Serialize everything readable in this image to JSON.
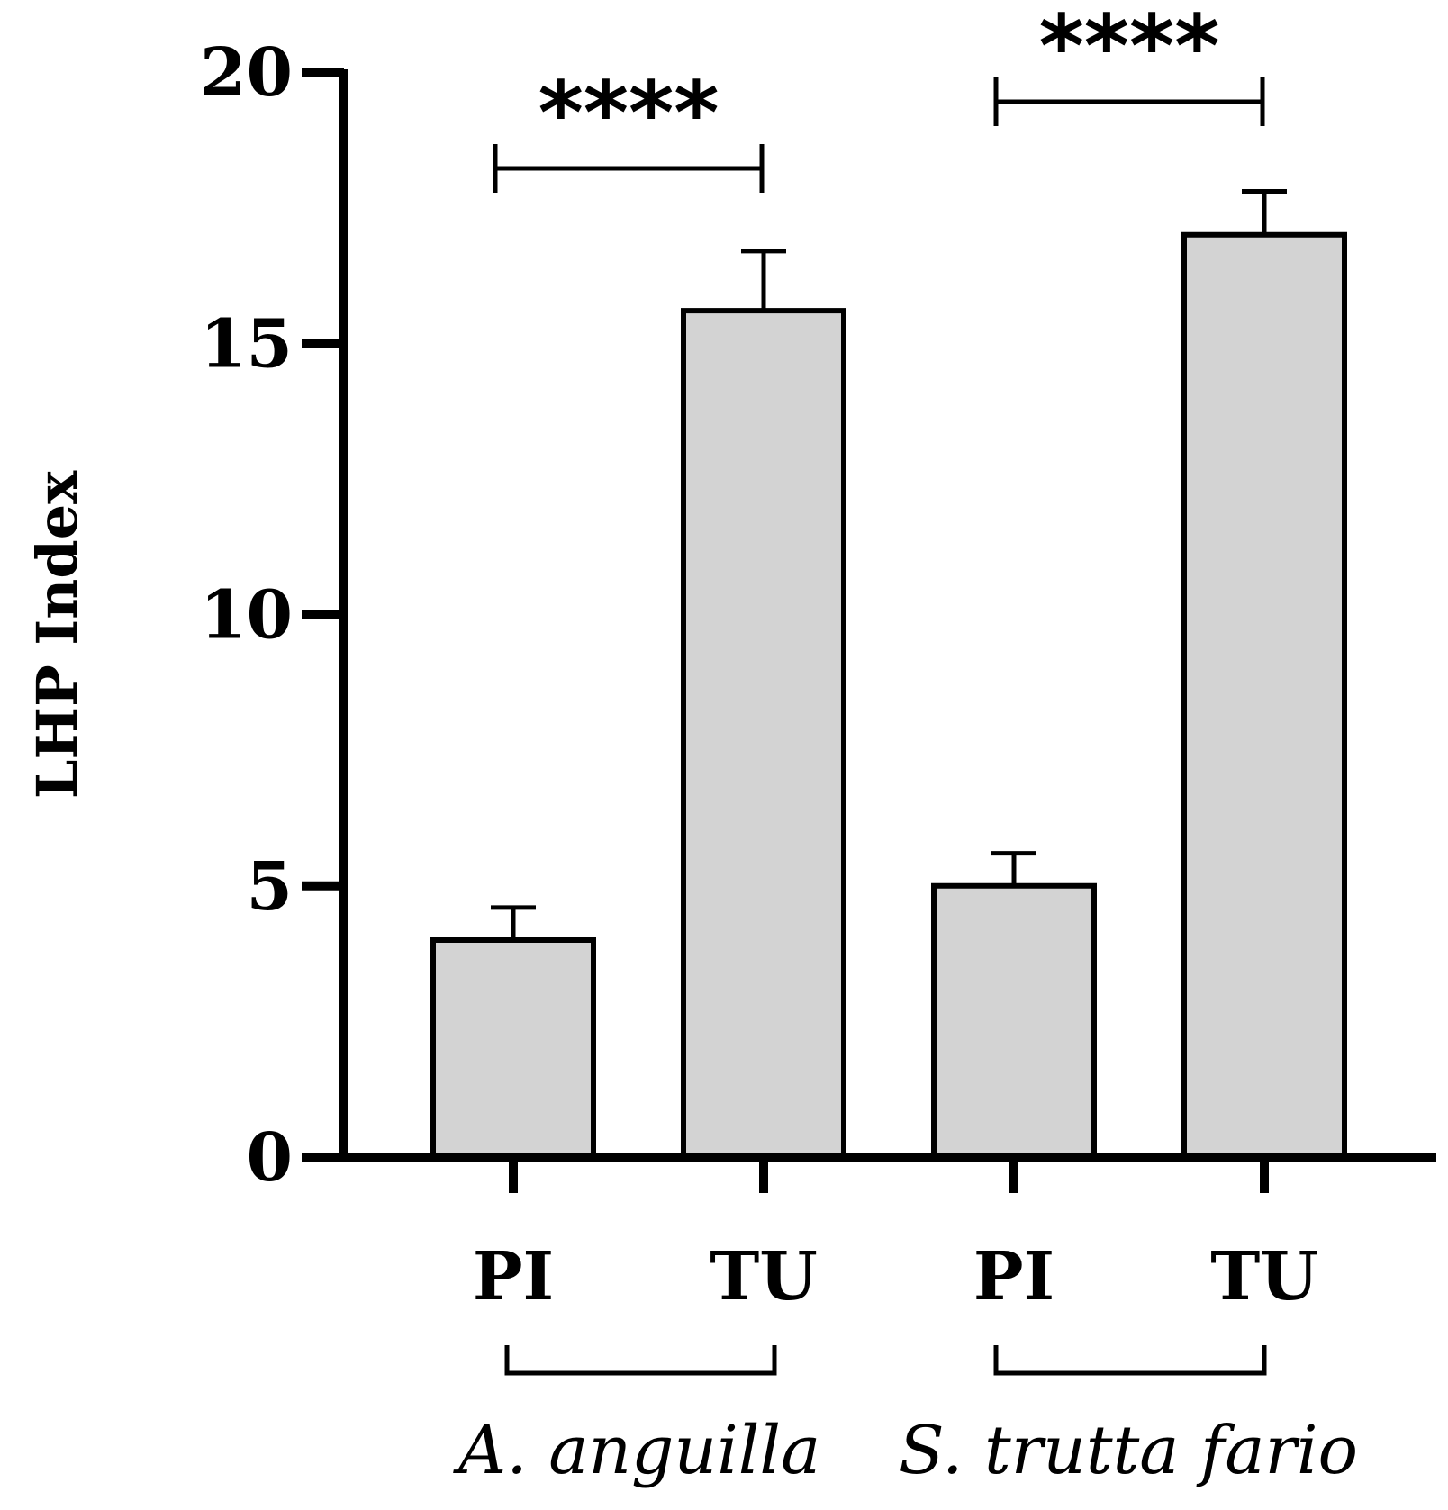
{
  "chart_data": {
    "type": "bar",
    "ylabel": "LHP Index",
    "ylim": [
      0,
      20
    ],
    "yticks": [
      0,
      5,
      10,
      15,
      20
    ],
    "grid": false,
    "bar_color": "#d3d3d3",
    "categories": [
      "PI",
      "TU",
      "PI",
      "TU"
    ],
    "values": [
      4.0,
      15.6,
      5.0,
      17.0
    ],
    "errors": [
      0.6,
      1.1,
      0.6,
      0.8
    ],
    "groups": [
      {
        "label": "A. anguilla",
        "bars": [
          0,
          1
        ],
        "significance": "****"
      },
      {
        "label": "S. trutta fario",
        "bars": [
          2,
          3
        ],
        "significance": "****"
      }
    ]
  }
}
